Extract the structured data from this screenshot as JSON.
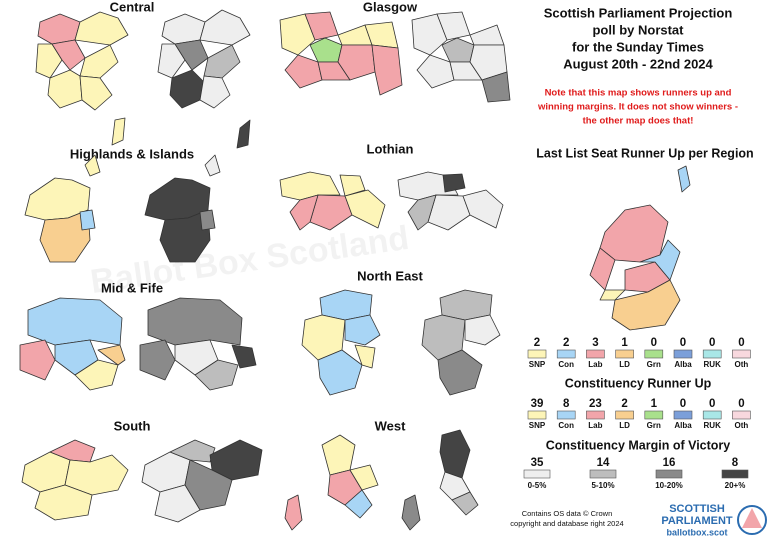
{
  "title_lines": [
    "Scottish Parliament Projection",
    "poll by Norstat",
    "for the Sunday Times",
    "August 20th - 22nd 2024"
  ],
  "note_lines": [
    "Note that this map shows runners up and",
    "winning margins. It does not show winners -",
    "the other map does that!"
  ],
  "watermark": "Ballot Box Scotland",
  "regions": [
    "Central",
    "Glasgow",
    "Highlands & Islands",
    "Lothian",
    "Mid & Fife",
    "North East",
    "South",
    "West"
  ],
  "parties": [
    {
      "name": "SNP",
      "color": "#fdf5b8"
    },
    {
      "name": "Con",
      "color": "#a8d5f5"
    },
    {
      "name": "Lab",
      "color": "#f2a5aa"
    },
    {
      "name": "LD",
      "color": "#f8cf90"
    },
    {
      "name": "Grn",
      "color": "#a9e08c"
    },
    {
      "name": "Alba",
      "color": "#7b9fd9"
    },
    {
      "name": "RUK",
      "color": "#a9e7e7"
    },
    {
      "name": "Oth",
      "color": "#f8d8de"
    }
  ],
  "list_runner_up": {
    "title": "Last List Seat Runner Up per Region",
    "counts": [
      2,
      2,
      3,
      1,
      0,
      0,
      0,
      0
    ]
  },
  "constituency_runner_up": {
    "title": "Constituency Runner Up",
    "counts": [
      39,
      8,
      23,
      2,
      1,
      0,
      0,
      0
    ]
  },
  "margin": {
    "title": "Constituency Margin of Victory",
    "bands": [
      {
        "count": 35,
        "label": "0-5%",
        "color": "#eeeeee"
      },
      {
        "count": 14,
        "label": "5-10%",
        "color": "#bdbdbd"
      },
      {
        "count": 16,
        "label": "10-20%",
        "color": "#8a8a8a"
      },
      {
        "count": 8,
        "label": "20+%",
        "color": "#444444"
      }
    ]
  },
  "footer_lines": [
    "Contains OS data © Crown",
    "copyright and database right 2024"
  ],
  "logo": {
    "line1": "SCOTTISH",
    "line2": "PARLIAMENT",
    "site": "ballotbox.scot"
  }
}
